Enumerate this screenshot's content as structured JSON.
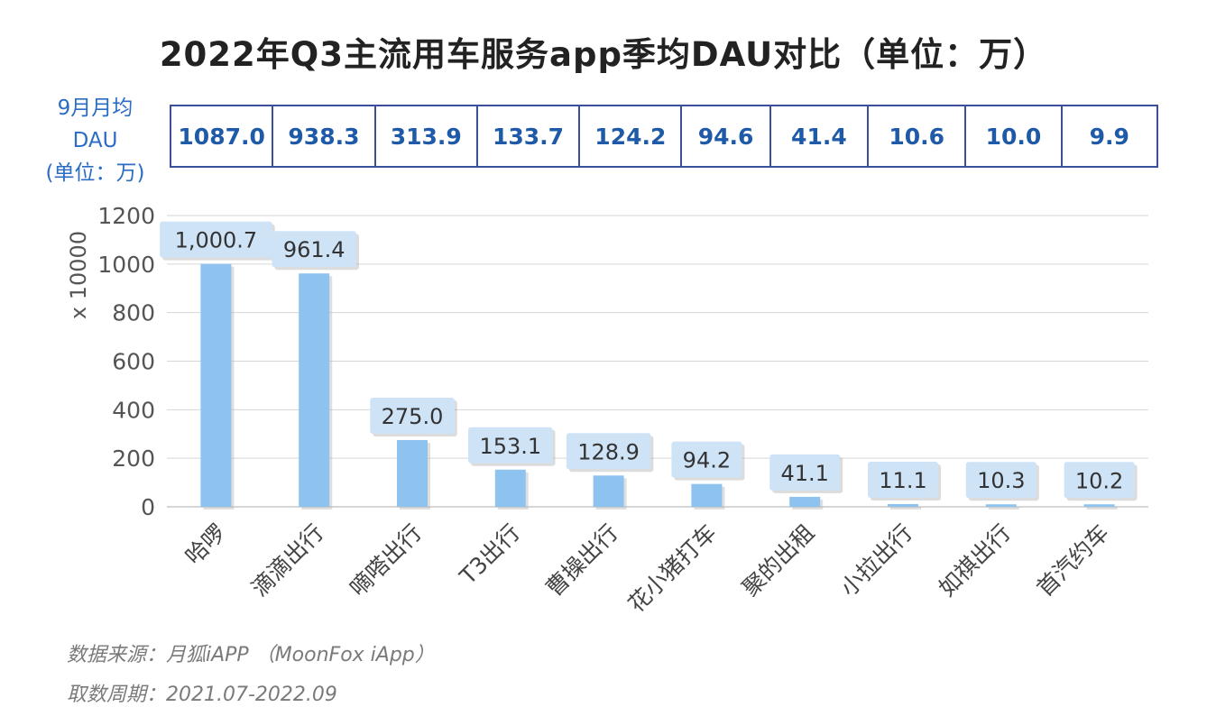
{
  "title": "2022年Q3主流用车服务app季均DAU对比（单位：万）",
  "table": {
    "row_label_lines": [
      "9月月均",
      "DAU",
      "(单位：万)"
    ],
    "values": [
      "1087.0",
      "938.3",
      "313.9",
      "133.7",
      "124.2",
      "94.6",
      "41.4",
      "10.6",
      "10.0",
      "9.9"
    ]
  },
  "chart_data": {
    "type": "bar",
    "categories": [
      "哈啰",
      "滴滴出行",
      "嘀嗒出行",
      "T3出行",
      "曹操出行",
      "花小猪打车",
      "聚的出租",
      "小拉出行",
      "如祺出行",
      "首汽约车"
    ],
    "values": [
      1000.7,
      961.4,
      275.0,
      153.1,
      128.9,
      94.2,
      41.1,
      11.1,
      10.3,
      10.2
    ],
    "data_labels": [
      "1,000.7",
      "961.4",
      "275.0",
      "153.1",
      "128.9",
      "94.2",
      "41.1",
      "11.1",
      "10.3",
      "10.2"
    ],
    "ylabel": "x 10000",
    "ylim": [
      0,
      1200
    ],
    "yticks": [
      0,
      200,
      400,
      600,
      800,
      1000,
      1200
    ],
    "grid": true,
    "bar_color": "#8ec3f0",
    "label_bg": "#cfe3f7"
  },
  "source": {
    "line1": "数据来源：月狐iAPP （MoonFox iApp）",
    "line2": "取数周期：2021.07-2022.09"
  }
}
